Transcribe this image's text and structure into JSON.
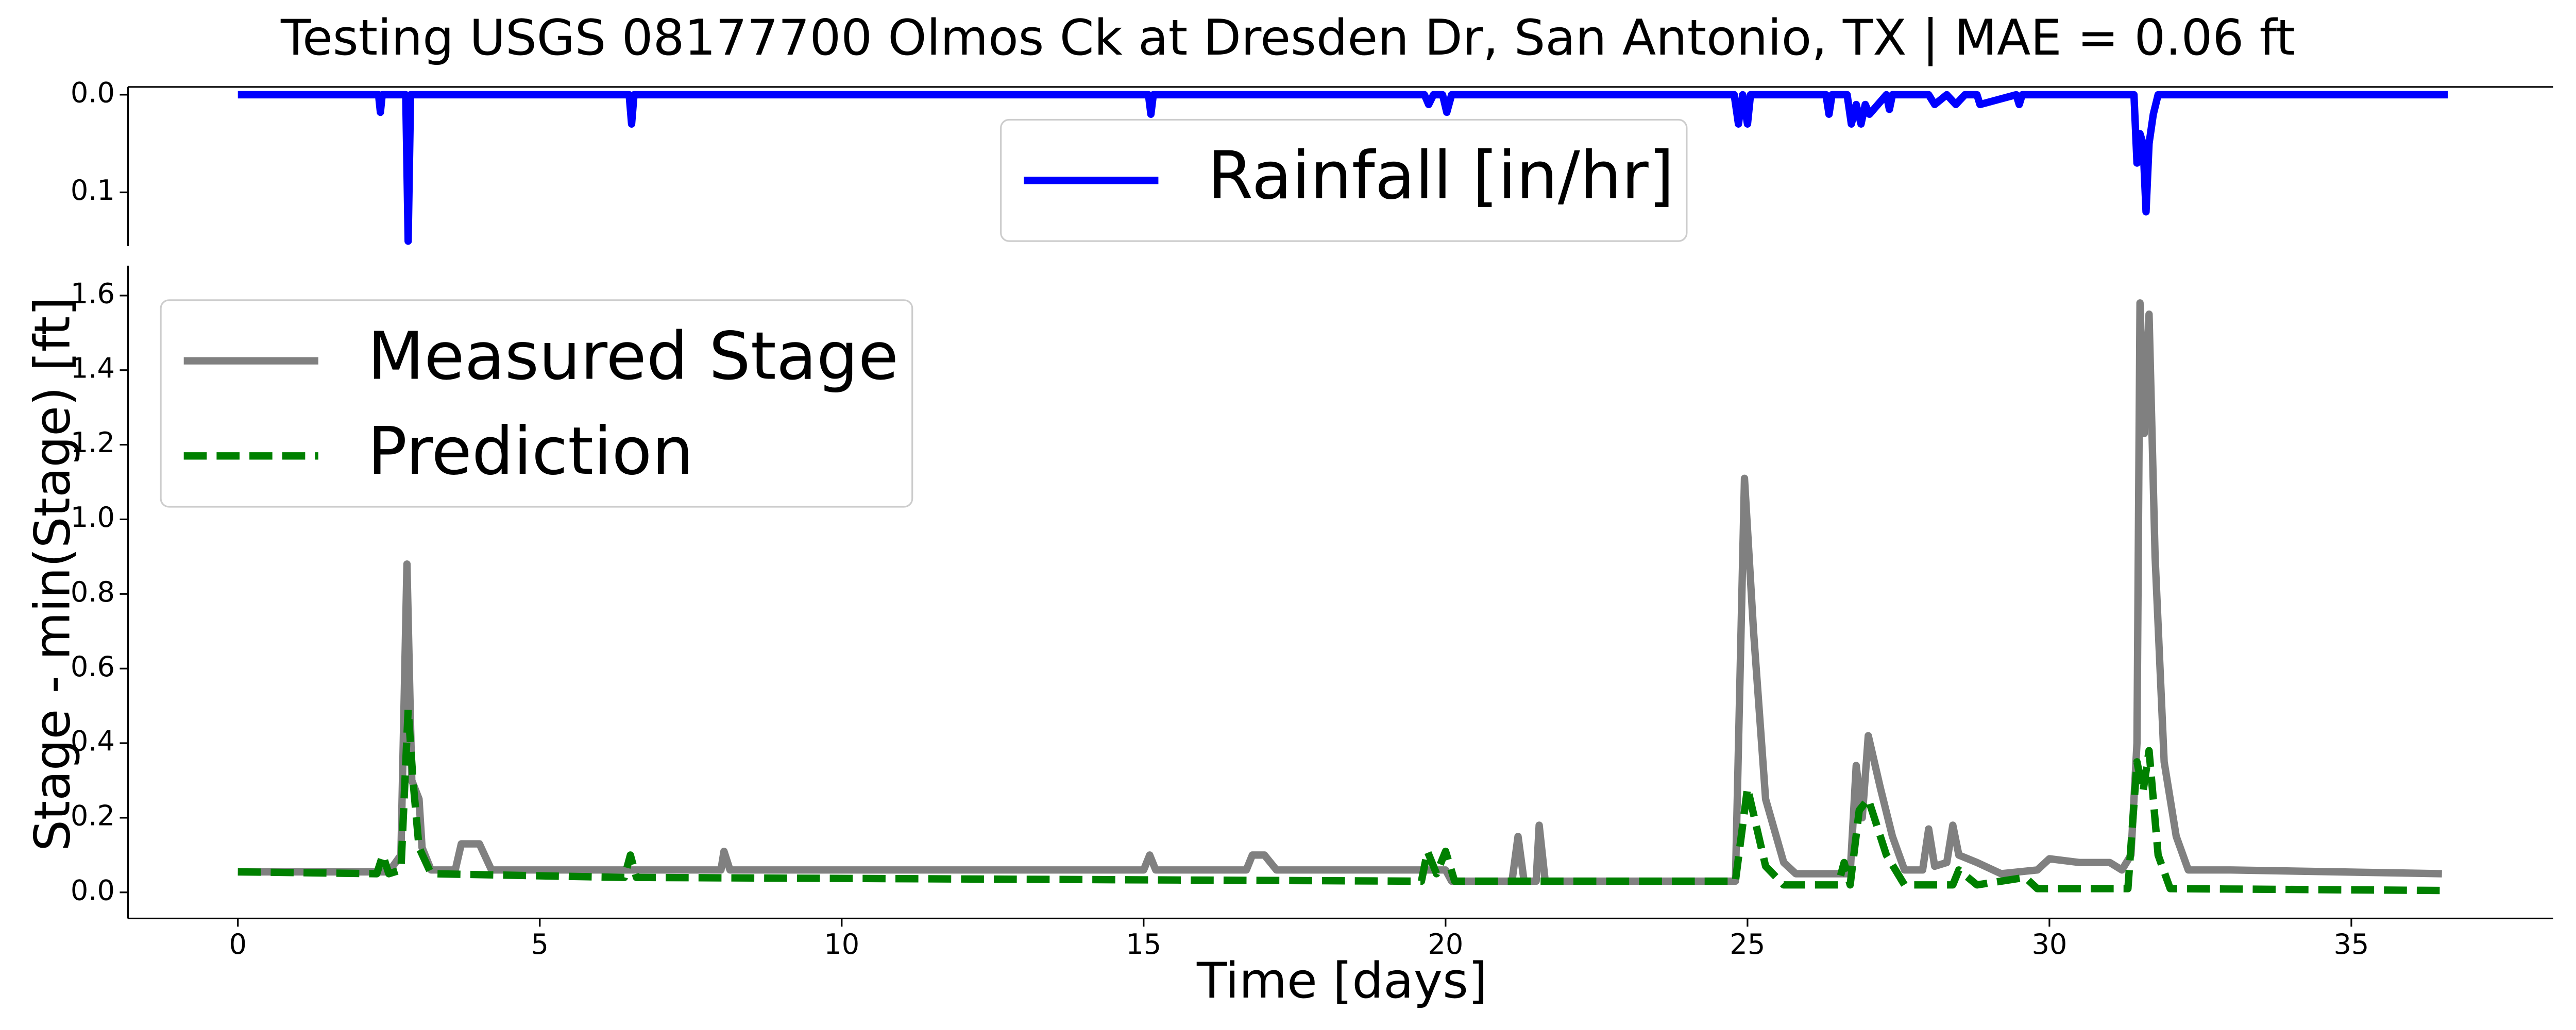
{
  "chart_data": [
    {
      "type": "line",
      "title": "Testing USGS 08177700 Olmos Ck at Dresden Dr, San Antonio, TX | MAE = 0.06 ft",
      "xlim": [
        -1.82,
        38.34
      ],
      "ylim": [
        -0.008,
        0.155
      ],
      "inverted_y": true,
      "yticks": [
        {
          "value": 0,
          "label": "0.0"
        },
        0.1
      ],
      "legend": "upper center",
      "series": [
        {
          "name": "Rainfall [in/hr]",
          "color": "#0000ff",
          "style": "solid",
          "x": [
            0,
            2.33,
            2.36,
            2.39,
            2.78,
            2.82,
            2.86,
            6.48,
            6.52,
            6.56,
            15.08,
            15.12,
            15.16,
            19.65,
            19.72,
            19.8,
            19.95,
            20.02,
            20.1,
            24.78,
            24.85,
            24.92,
            25.0,
            25.05,
            26.3,
            26.35,
            26.4,
            26.65,
            26.72,
            26.8,
            26.88,
            26.95,
            27.02,
            27.3,
            27.35,
            27.4,
            28.0,
            28.1,
            28.3,
            28.45,
            28.6,
            28.8,
            28.85,
            29.45,
            29.5,
            29.55,
            31.4,
            31.45,
            31.5,
            31.55,
            31.6,
            31.65,
            31.72,
            31.8,
            36.6
          ],
          "values": [
            0,
            0,
            0.018,
            0,
            0,
            0.15,
            0,
            0,
            0.03,
            0,
            0,
            0.02,
            0,
            0,
            0.01,
            0,
            0,
            0.018,
            0,
            0,
            0.03,
            0,
            0.03,
            0,
            0,
            0.02,
            0,
            0,
            0.03,
            0.01,
            0.03,
            0.01,
            0.02,
            0,
            0.015,
            0,
            0,
            0.01,
            0,
            0.01,
            0,
            0,
            0.01,
            0,
            0.01,
            0,
            0,
            0.07,
            0.04,
            0.05,
            0.12,
            0.05,
            0.02,
            0,
            0
          ]
        }
      ]
    },
    {
      "type": "line",
      "xlabel": "Time [days]",
      "ylabel": "Stage - min(Stage) [ft]",
      "xlim": [
        -1.82,
        38.34
      ],
      "xticks": [
        0,
        5,
        10,
        15,
        20,
        25,
        30,
        35
      ],
      "ylim": [
        -0.07,
        1.68
      ],
      "yticks": [
        {
          "value": 0,
          "label": "0.0"
        },
        0.2,
        0.4,
        0.6,
        0.8,
        {
          "value": 1,
          "label": "1.0"
        },
        1.2,
        1.4,
        1.6
      ],
      "legend": "upper left",
      "series": [
        {
          "name": "Measured Stage",
          "color": "#808080",
          "style": "solid",
          "x": [
            0,
            2.5,
            2.7,
            2.8,
            2.88,
            3.0,
            3.05,
            3.2,
            3.6,
            3.7,
            4.0,
            4.2,
            6.5,
            8.0,
            8.05,
            8.15,
            10,
            15.0,
            15.1,
            15.2,
            16.7,
            16.8,
            17.0,
            17.2,
            20.0,
            20.1,
            21.1,
            21.2,
            21.3,
            21.5,
            21.55,
            21.65,
            24.8,
            24.95,
            25.1,
            25.3,
            25.6,
            25.8,
            26.7,
            26.8,
            26.9,
            27.0,
            27.2,
            27.4,
            27.6,
            27.9,
            28.0,
            28.1,
            28.3,
            28.4,
            28.5,
            28.8,
            29.2,
            29.8,
            30.0,
            30.5,
            31.0,
            31.2,
            31.35,
            31.45,
            31.5,
            31.57,
            31.65,
            31.75,
            31.9,
            32.1,
            32.3,
            33,
            36.5
          ],
          "values": [
            0.055,
            0.055,
            0.1,
            0.88,
            0.3,
            0.25,
            0.12,
            0.06,
            0.06,
            0.13,
            0.13,
            0.06,
            0.06,
            0.06,
            0.11,
            0.06,
            0.06,
            0.06,
            0.1,
            0.06,
            0.06,
            0.1,
            0.1,
            0.06,
            0.06,
            0.03,
            0.03,
            0.15,
            0.03,
            0.03,
            0.18,
            0.03,
            0.03,
            1.11,
            0.7,
            0.25,
            0.08,
            0.05,
            0.05,
            0.34,
            0.2,
            0.42,
            0.28,
            0.15,
            0.06,
            0.06,
            0.17,
            0.07,
            0.08,
            0.18,
            0.1,
            0.08,
            0.05,
            0.06,
            0.09,
            0.08,
            0.08,
            0.06,
            0.1,
            0.4,
            1.58,
            1.23,
            1.55,
            0.9,
            0.35,
            0.15,
            0.06,
            0.06,
            0.05
          ]
        },
        {
          "name": "Prediction",
          "color": "#008000",
          "style": "dashed",
          "x": [
            0,
            2.3,
            2.4,
            2.5,
            2.7,
            2.82,
            2.9,
            3.0,
            3.2,
            6.4,
            6.5,
            6.6,
            19.6,
            19.7,
            19.85,
            20.0,
            20.15,
            24.8,
            25.0,
            25.3,
            25.6,
            26.5,
            26.6,
            26.7,
            26.85,
            27.0,
            27.3,
            27.6,
            28.4,
            28.5,
            28.8,
            29.6,
            29.8,
            31.3,
            31.45,
            31.55,
            31.65,
            31.8,
            32.0,
            36.5
          ],
          "values": [
            0.055,
            0.05,
            0.1,
            0.05,
            0.06,
            0.49,
            0.3,
            0.12,
            0.05,
            0.04,
            0.1,
            0.04,
            0.03,
            0.11,
            0.05,
            0.11,
            0.03,
            0.03,
            0.28,
            0.07,
            0.02,
            0.02,
            0.08,
            0.02,
            0.22,
            0.25,
            0.1,
            0.02,
            0.02,
            0.06,
            0.02,
            0.04,
            0.01,
            0.01,
            0.35,
            0.27,
            0.38,
            0.1,
            0.01,
            0.005
          ]
        }
      ]
    }
  ]
}
